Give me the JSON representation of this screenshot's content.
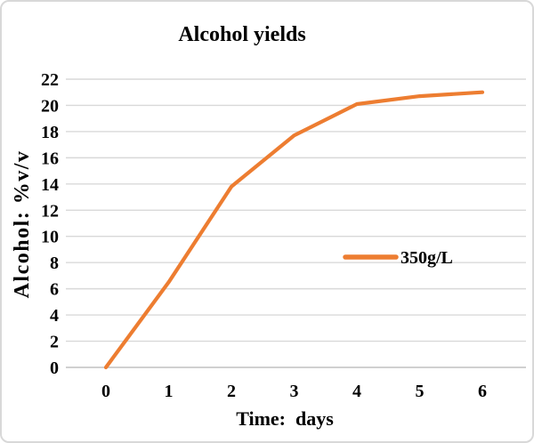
{
  "chart_data": {
    "type": "line",
    "title": "Alcohol yields",
    "xlabel": "Time:  days",
    "ylabel": "Alcohol: %v/v",
    "x": [
      0,
      1,
      2,
      3,
      4,
      5,
      6
    ],
    "series": [
      {
        "name": "350g/L",
        "color": "#ED7D31",
        "values": [
          0,
          6.5,
          13.8,
          17.7,
          20.1,
          20.7,
          21.0
        ]
      }
    ],
    "ylim": [
      0,
      22
    ],
    "ytick_step": 2,
    "xlim": [
      0,
      6
    ],
    "grid": "horizontal",
    "legend_position": "middle-right"
  },
  "colors": {
    "line": "#ED7D31",
    "gridline": "#D9D9D9",
    "axis_line": "#C0C0C0",
    "text": "#000000",
    "border": "#D8D8D8",
    "background": "#FFFFFF"
  }
}
